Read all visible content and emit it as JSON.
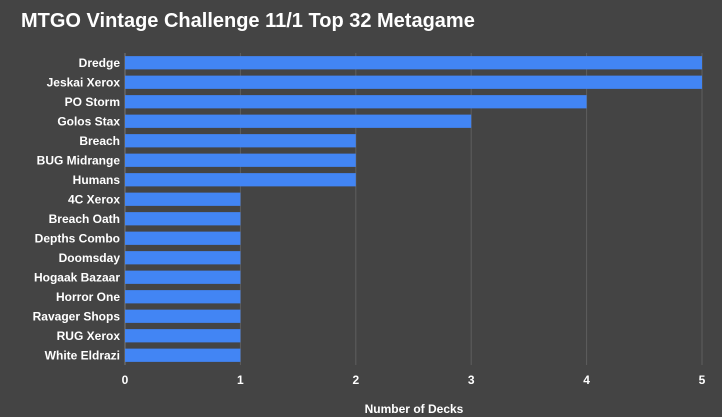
{
  "chart_data": {
    "type": "bar",
    "orientation": "horizontal",
    "title": "MTGO Vintage Challenge 11/1 Top 32 Metagame",
    "xlabel": "Number of Decks",
    "ylabel": "",
    "categories": [
      "Dredge",
      "Jeskai Xerox",
      "PO Storm",
      "Golos Stax",
      "Breach",
      "BUG Midrange",
      "Humans",
      "4C Xerox",
      "Breach Oath",
      "Depths Combo",
      "Doomsday",
      "Hogaak Bazaar",
      "Horror One",
      "Ravager Shops",
      "RUG Xerox",
      "White Eldrazi"
    ],
    "values": [
      5,
      5,
      4,
      3,
      2,
      2,
      2,
      1,
      1,
      1,
      1,
      1,
      1,
      1,
      1,
      1
    ],
    "xlim": [
      0,
      5
    ],
    "xticks": [
      "0",
      "1",
      "2",
      "3",
      "4",
      "5"
    ],
    "grid": true,
    "legend": "none",
    "colors": {
      "background": "#444444",
      "bar": "#4285f4",
      "grid": "#5e5e5e",
      "text": "#ffffff"
    }
  }
}
